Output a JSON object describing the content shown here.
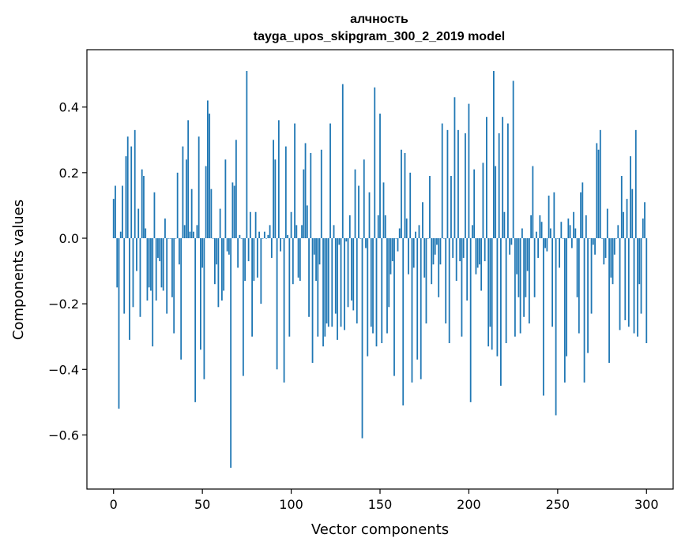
{
  "chart_data": {
    "type": "bar",
    "title": "алчность",
    "subtitle": "tayga_upos_skipgram_300_2_2019 model",
    "xlabel": "Vector components",
    "ylabel": "Components values",
    "xlim": [
      -15,
      315
    ],
    "ylim": [
      -0.765,
      0.575
    ],
    "xticks": [
      0,
      50,
      100,
      150,
      200,
      250,
      300
    ],
    "xtick_labels": [
      "0",
      "50",
      "100",
      "150",
      "200",
      "250",
      "300"
    ],
    "yticks": [
      -0.6,
      -0.4,
      -0.2,
      0.0,
      0.2,
      0.4
    ],
    "ytick_labels": [
      "−0.6",
      "−0.4",
      "−0.2",
      "0.0",
      "0.2",
      "0.4"
    ],
    "bar_color": "#1f77b4",
    "grid": false,
    "values": [
      0.12,
      0.16,
      -0.15,
      -0.52,
      0.02,
      0.16,
      -0.23,
      0.25,
      0.31,
      -0.31,
      0.28,
      -0.21,
      0.33,
      -0.1,
      0.09,
      -0.24,
      0.21,
      0.19,
      0.03,
      -0.19,
      -0.15,
      -0.16,
      -0.33,
      0.14,
      -0.19,
      -0.06,
      -0.07,
      -0.15,
      -0.16,
      0.06,
      -0.23,
      0.0,
      0.0,
      -0.18,
      -0.29,
      0.0,
      0.2,
      -0.08,
      -0.37,
      0.28,
      0.04,
      0.24,
      0.36,
      0.02,
      0.15,
      0.02,
      -0.5,
      0.04,
      0.31,
      -0.34,
      -0.09,
      -0.43,
      0.22,
      0.42,
      0.38,
      0.15,
      0.0,
      -0.14,
      -0.08,
      -0.21,
      0.09,
      -0.19,
      -0.16,
      0.24,
      -0.04,
      -0.05,
      -0.7,
      0.17,
      0.16,
      0.3,
      -0.09,
      0.01,
      0.0,
      -0.42,
      -0.13,
      0.51,
      -0.07,
      0.08,
      -0.3,
      -0.13,
      0.08,
      -0.12,
      0.02,
      -0.2,
      0.0,
      0.02,
      0.0,
      0.01,
      0.04,
      -0.06,
      0.3,
      0.24,
      -0.4,
      0.36,
      -0.04,
      0.0,
      -0.44,
      0.28,
      0.01,
      -0.3,
      0.08,
      -0.14,
      0.35,
      0.04,
      -0.12,
      -0.13,
      0.04,
      0.21,
      0.29,
      0.1,
      -0.24,
      0.26,
      -0.38,
      -0.05,
      -0.13,
      -0.3,
      -0.08,
      0.27,
      -0.33,
      -0.3,
      -0.26,
      -0.27,
      0.35,
      -0.27,
      0.04,
      -0.23,
      -0.31,
      -0.02,
      -0.27,
      0.47,
      -0.28,
      -0.01,
      -0.21,
      0.07,
      -0.19,
      -0.22,
      0.21,
      -0.26,
      0.16,
      0.0,
      -0.61,
      0.24,
      -0.03,
      -0.36,
      0.14,
      -0.27,
      -0.29,
      0.46,
      -0.33,
      0.07,
      0.38,
      -0.32,
      0.17,
      0.07,
      -0.29,
      -0.21,
      -0.11,
      -0.07,
      -0.42,
      0.0,
      -0.04,
      0.03,
      0.27,
      -0.51,
      0.26,
      0.06,
      -0.11,
      0.2,
      -0.44,
      -0.09,
      0.02,
      -0.37,
      0.04,
      -0.43,
      0.11,
      -0.12,
      -0.26,
      0.0,
      0.19,
      -0.14,
      -0.08,
      -0.05,
      -0.02,
      -0.18,
      -0.08,
      0.35,
      0.0,
      -0.26,
      0.33,
      -0.32,
      0.19,
      -0.06,
      0.43,
      -0.13,
      0.33,
      -0.07,
      -0.3,
      -0.06,
      0.32,
      -0.19,
      0.41,
      -0.5,
      0.04,
      0.21,
      -0.11,
      -0.09,
      -0.08,
      -0.16,
      0.23,
      -0.07,
      0.37,
      -0.33,
      -0.27,
      -0.34,
      0.51,
      0.22,
      -0.36,
      0.32,
      -0.45,
      0.37,
      0.08,
      -0.32,
      0.35,
      -0.05,
      -0.02,
      0.48,
      -0.3,
      -0.11,
      -0.18,
      -0.29,
      0.03,
      -0.24,
      -0.18,
      -0.1,
      -0.26,
      0.07,
      0.22,
      -0.18,
      0.02,
      -0.06,
      0.07,
      0.05,
      -0.48,
      -0.03,
      -0.04,
      0.13,
      0.03,
      -0.27,
      0.14,
      -0.54,
      0.0,
      -0.09,
      0.05,
      0.0,
      -0.44,
      -0.36,
      0.06,
      0.04,
      -0.03,
      0.08,
      0.03,
      -0.18,
      -0.29,
      0.14,
      0.17,
      -0.44,
      0.07,
      -0.35,
      0.0,
      -0.23,
      -0.02,
      -0.05,
      0.29,
      0.27,
      0.33,
      0.0,
      -0.08,
      -0.06,
      0.09,
      -0.38,
      -0.12,
      -0.14,
      -0.05,
      0.0,
      0.04,
      -0.28,
      0.19,
      0.08,
      -0.25,
      0.12,
      -0.27,
      0.25,
      0.15,
      -0.29,
      0.33,
      -0.3,
      -0.14,
      -0.23,
      0.06,
      0.11,
      -0.32
    ]
  }
}
